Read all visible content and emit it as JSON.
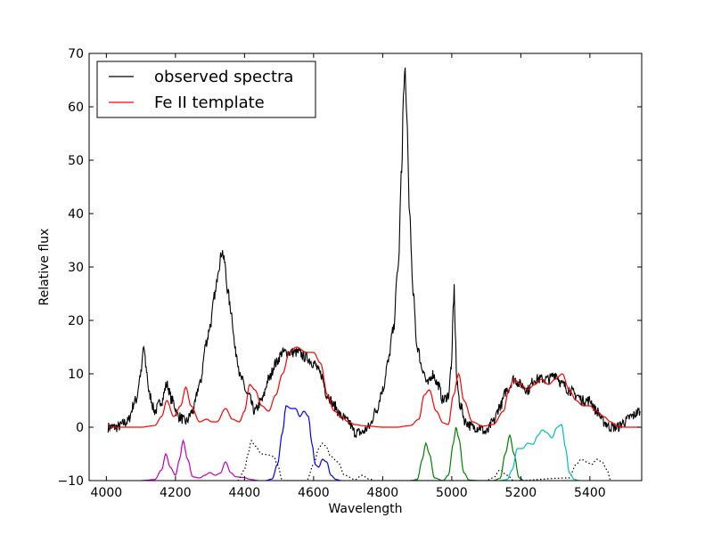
{
  "chart_data": {
    "type": "line",
    "title": "",
    "xlabel": "Wavelength",
    "ylabel": "Relative flux",
    "xlim": [
      3950,
      5550
    ],
    "ylim": [
      -10,
      70
    ],
    "grid": false,
    "legend_position": "top-left",
    "x_ticks": [
      4000,
      4200,
      4400,
      4600,
      4800,
      5000,
      5200,
      5400
    ],
    "x_tick_labels": [
      "4000",
      "4200",
      "4400",
      "4600",
      "4800",
      "5000",
      "5200",
      "5400"
    ],
    "y_ticks": [
      -10,
      0,
      10,
      20,
      30,
      40,
      50,
      60,
      70
    ],
    "y_tick_labels": [
      "−10",
      "0",
      "10",
      "20",
      "30",
      "40",
      "50",
      "60",
      "70"
    ],
    "legend": [
      {
        "label": "observed spectra",
        "color": "#000000"
      },
      {
        "label": "Fe II template",
        "color": "#ff0000"
      }
    ],
    "series": [
      {
        "name": "observed spectra",
        "color": "#000000",
        "style": "solid",
        "noisy": true,
        "x": [
          4005,
          4030,
          4060,
          4085,
          4100,
          4108,
          4115,
          4125,
          4140,
          4160,
          4175,
          4190,
          4210,
          4230,
          4250,
          4270,
          4290,
          4300,
          4315,
          4325,
          4335,
          4342,
          4350,
          4360,
          4375,
          4390,
          4410,
          4430,
          4450,
          4470,
          4490,
          4510,
          4530,
          4555,
          4580,
          4600,
          4620,
          4640,
          4660,
          4680,
          4700,
          4720,
          4740,
          4760,
          4780,
          4800,
          4815,
          4830,
          4845,
          4855,
          4860,
          4865,
          4870,
          4878,
          4888,
          4900,
          4915,
          4930,
          4945,
          4960,
          4975,
          4990,
          5000,
          5004,
          5007,
          5010,
          5015,
          5025,
          5040,
          5060,
          5080,
          5100,
          5120,
          5140,
          5160,
          5180,
          5200,
          5220,
          5240,
          5260,
          5280,
          5300,
          5320,
          5340,
          5360,
          5380,
          5400,
          5420,
          5440,
          5460,
          5480,
          5500,
          5520,
          5545
        ],
        "y": [
          0,
          0,
          1,
          5,
          10,
          15,
          11,
          6,
          3,
          5,
          8,
          5,
          2,
          1,
          3,
          8,
          16,
          19,
          25,
          30,
          33,
          31,
          26,
          22,
          14,
          9,
          6,
          3,
          5,
          9,
          12,
          14,
          14,
          14,
          13,
          12,
          10,
          6,
          4,
          2,
          1,
          -1,
          -1,
          0,
          3,
          7,
          12,
          18,
          30,
          48,
          62,
          67,
          57,
          40,
          25,
          15,
          11,
          8,
          10,
          8,
          5,
          6,
          12,
          22,
          26,
          18,
          8,
          4,
          1,
          0,
          0,
          -1,
          1,
          4,
          7,
          9,
          8,
          7,
          9,
          9,
          9,
          10,
          8,
          7,
          6,
          5,
          5,
          3,
          1,
          0,
          0,
          1,
          2,
          3
        ]
      },
      {
        "name": "Fe II template",
        "color": "#ff0000",
        "style": "solid",
        "noisy": false,
        "x": [
          4005,
          4050,
          4100,
          4140,
          4160,
          4175,
          4195,
          4215,
          4230,
          4245,
          4270,
          4290,
          4305,
          4320,
          4345,
          4365,
          4385,
          4400,
          4415,
          4430,
          4450,
          4470,
          4490,
          4510,
          4530,
          4550,
          4580,
          4600,
          4620,
          4640,
          4660,
          4680,
          4700,
          4720,
          4740,
          4760,
          4800,
          4840,
          4880,
          4905,
          4920,
          4935,
          4955,
          4975,
          4990,
          5005,
          5020,
          5035,
          5060,
          5090,
          5120,
          5150,
          5165,
          5180,
          5200,
          5220,
          5240,
          5260,
          5280,
          5300,
          5320,
          5340,
          5360,
          5380,
          5400,
          5420,
          5440,
          5460,
          5480,
          5500,
          5520,
          5545
        ],
        "y": [
          0,
          0,
          0,
          0.3,
          2,
          5,
          2,
          4,
          7.5,
          4,
          1,
          1.5,
          1,
          1,
          3.5,
          1.5,
          1,
          3,
          8,
          7,
          4,
          3,
          6,
          10,
          14,
          15,
          14,
          14,
          12,
          6,
          3,
          2,
          1,
          0.5,
          0.3,
          0.2,
          0,
          0,
          0.3,
          1.5,
          6,
          7,
          3,
          0.8,
          0.5,
          6,
          10,
          5,
          1,
          0.2,
          0.5,
          3,
          7,
          9,
          8,
          7,
          8,
          9,
          8,
          9,
          10,
          7,
          5,
          4,
          4,
          3,
          2,
          1,
          0.2,
          0,
          0,
          0
        ]
      },
      {
        "name": "",
        "color": "#bf00bf",
        "style": "solid",
        "noisy": false,
        "x": [
          4100,
          4140,
          4160,
          4172,
          4185,
          4200,
          4212,
          4222,
          4235,
          4250,
          4270,
          4285,
          4300,
          4315,
          4330,
          4345,
          4360,
          4375,
          4395,
          4420,
          4440
        ],
        "y": [
          -10,
          -9.8,
          -8,
          -5,
          -7.5,
          -9,
          -6,
          -2.5,
          -6,
          -9.3,
          -9.5,
          -9,
          -8.5,
          -9,
          -8.6,
          -6.5,
          -8.5,
          -9.3,
          -9.4,
          -9.8,
          -10
        ]
      },
      {
        "name": "",
        "color": "#000000",
        "style": "dotted",
        "noisy": false,
        "x": [
          4380,
          4400,
          4410,
          4420,
          4430,
          4450,
          4470,
          4485,
          4495,
          4510,
          4550,
          4580,
          4600,
          4615,
          4625,
          4635,
          4650,
          4670,
          4690,
          4720,
          4740,
          4760,
          4780,
          5100,
          5120,
          5140,
          5160,
          5180,
          5340,
          5360,
          5375,
          5390,
          5405,
          5420,
          5435,
          5450,
          5460
        ],
        "y": [
          -10,
          -8,
          -5,
          -2.5,
          -3.5,
          -5,
          -5.2,
          -5.5,
          -7,
          -10,
          -10,
          -10,
          -7,
          -4,
          -3,
          -3.5,
          -5.5,
          -6.5,
          -9,
          -9.8,
          -9,
          -9.7,
          -10,
          -10,
          -9.5,
          -8,
          -9,
          -10,
          -9.5,
          -7,
          -6,
          -6.5,
          -7,
          -6,
          -6.5,
          -8,
          -10
        ]
      },
      {
        "name": "",
        "color": "#0000ff",
        "style": "solid",
        "noisy": false,
        "x": [
          4460,
          4480,
          4495,
          4510,
          4520,
          4535,
          4548,
          4560,
          4572,
          4585,
          4595,
          4605,
          4615,
          4625,
          4638,
          4650,
          4665,
          4680
        ],
        "y": [
          -10,
          -9.7,
          -7,
          -1,
          4,
          3.5,
          3.5,
          2,
          3,
          2,
          -3,
          -7,
          -7.5,
          -6,
          -6.5,
          -9,
          -9.8,
          -10
        ]
      },
      {
        "name": "",
        "color": "#008000",
        "style": "solid",
        "noisy": false,
        "x": [
          4880,
          4900,
          4915,
          4925,
          4935,
          4950,
          4975,
          4990,
          5005,
          5012,
          5020,
          5035,
          5050,
          5080,
          5120,
          5140,
          5155,
          5168,
          5180,
          5195,
          5210
        ],
        "y": [
          -10,
          -9.8,
          -6,
          -3,
          -5,
          -9.5,
          -10,
          -9,
          -3,
          0,
          -2,
          -8.5,
          -9.9,
          -10,
          -10,
          -9.6,
          -5,
          -1.5,
          -5,
          -9.5,
          -10
        ]
      },
      {
        "name": "",
        "color": "#00bfbf",
        "style": "solid",
        "noisy": false,
        "x": [
          5140,
          5160,
          5175,
          5190,
          5205,
          5220,
          5235,
          5250,
          5262,
          5275,
          5290,
          5305,
          5318,
          5330,
          5340,
          5355,
          5370
        ],
        "y": [
          -10,
          -9.8,
          -8,
          -4,
          -4,
          -3,
          -3.2,
          -1.5,
          -0.5,
          -1,
          -2,
          0,
          0.5,
          -4,
          -8.5,
          -9.8,
          -10
        ]
      }
    ]
  }
}
